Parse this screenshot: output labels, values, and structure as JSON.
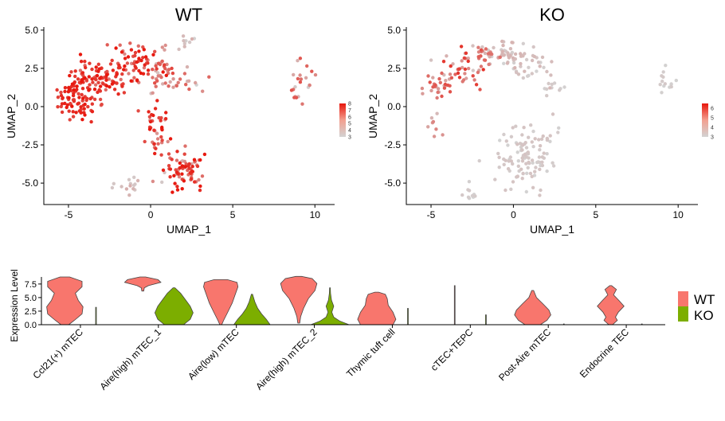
{
  "chart_data": [
    {
      "type": "scatter",
      "panel": "WT",
      "title": "WT",
      "xlabel": "UMAP_1",
      "ylabel": "UMAP_2",
      "xlim": [
        -6.5,
        11.2
      ],
      "ylim": [
        -6.4,
        5.2
      ],
      "xticks": [
        -5,
        0,
        5,
        10
      ],
      "yticks": [
        -5.0,
        -2.5,
        0.0,
        2.5,
        5.0
      ],
      "xtick_labels": [
        "-5",
        "0",
        "5",
        "10"
      ],
      "ytick_labels": [
        "-5.0",
        "-2.5",
        "0.0",
        "2.5",
        "5.0"
      ],
      "color_scale": {
        "min": 3,
        "max": 8,
        "low_color": "#d3d3d3",
        "high_color": "#e8160c",
        "tick_values": [
          3,
          4,
          5,
          6,
          7,
          8
        ],
        "tick_labels": [
          "3",
          "4",
          "5",
          "6",
          "7",
          "8"
        ]
      },
      "clusters": [
        {
          "cx": -4.5,
          "cy": 0.8,
          "sx": 0.55,
          "sy": 0.9,
          "n": 95,
          "expr": [
            6.5,
            8
          ]
        },
        {
          "cx": -2.8,
          "cy": 1.9,
          "sx": 0.85,
          "sy": 0.7,
          "n": 75,
          "expr": [
            5.5,
            8
          ]
        },
        {
          "cx": -1.0,
          "cy": 3.0,
          "sx": 0.8,
          "sy": 0.6,
          "n": 55,
          "expr": [
            5,
            8
          ]
        },
        {
          "cx": 0.7,
          "cy": 2.7,
          "sx": 0.6,
          "sy": 0.5,
          "n": 30,
          "expr": [
            3.5,
            7
          ]
        },
        {
          "cx": 1.8,
          "cy": 1.6,
          "sx": 0.9,
          "sy": 0.35,
          "n": 26,
          "expr": [
            3,
            6
          ]
        },
        {
          "cx": 2.3,
          "cy": 4.3,
          "sx": 0.25,
          "sy": 0.18,
          "n": 8,
          "expr": [
            3,
            4
          ]
        },
        {
          "cx": 0.4,
          "cy": -1.6,
          "sx": 0.4,
          "sy": 0.9,
          "n": 40,
          "expr": [
            4.5,
            8
          ]
        },
        {
          "cx": 1.9,
          "cy": -4.2,
          "sx": 0.7,
          "sy": 0.6,
          "n": 75,
          "expr": [
            3,
            8
          ]
        },
        {
          "cx": -1.3,
          "cy": -5.1,
          "sx": 0.6,
          "sy": 0.25,
          "n": 14,
          "expr": [
            3,
            4
          ]
        },
        {
          "cx": 9.3,
          "cy": 1.5,
          "sx": 0.45,
          "sy": 0.55,
          "n": 22,
          "expr": [
            3,
            6.5
          ]
        }
      ]
    },
    {
      "type": "scatter",
      "panel": "KO",
      "title": "KO",
      "xlabel": "UMAP_1",
      "ylabel": "UMAP_2",
      "xlim": [
        -6.5,
        11.2
      ],
      "ylim": [
        -6.4,
        5.2
      ],
      "xticks": [
        -5,
        0,
        5,
        10
      ],
      "yticks": [
        -5.0,
        -2.5,
        0.0,
        2.5,
        5.0
      ],
      "xtick_labels": [
        "-5",
        "0",
        "5",
        "10"
      ],
      "ytick_labels": [
        "-5.0",
        "-2.5",
        "0.0",
        "2.5",
        "5.0"
      ],
      "color_scale": {
        "min": 3,
        "max": 6.5,
        "low_color": "#d3d3d3",
        "high_color": "#e8160c",
        "tick_values": [
          3,
          4,
          5,
          6
        ],
        "tick_labels": [
          "3",
          "4",
          "5",
          "6"
        ]
      },
      "clusters": [
        {
          "cx": -4.5,
          "cy": 1.5,
          "sx": 0.5,
          "sy": 0.55,
          "n": 30,
          "expr": [
            3,
            5.5
          ]
        },
        {
          "cx": -3.0,
          "cy": 2.4,
          "sx": 0.6,
          "sy": 0.5,
          "n": 35,
          "expr": [
            3.5,
            6
          ]
        },
        {
          "cx": -1.8,
          "cy": 3.3,
          "sx": 0.5,
          "sy": 0.4,
          "n": 25,
          "expr": [
            3,
            5.5
          ]
        },
        {
          "cx": -0.3,
          "cy": 3.4,
          "sx": 0.6,
          "sy": 0.5,
          "n": 40,
          "expr": [
            3,
            3.6
          ]
        },
        {
          "cx": 1.0,
          "cy": 2.5,
          "sx": 0.7,
          "sy": 0.6,
          "n": 30,
          "expr": [
            3,
            3.5
          ]
        },
        {
          "cx": 2.4,
          "cy": 1.2,
          "sx": 0.5,
          "sy": 0.35,
          "n": 10,
          "expr": [
            3,
            3.2
          ]
        },
        {
          "cx": -4.8,
          "cy": -0.7,
          "sx": 0.3,
          "sy": 0.5,
          "n": 8,
          "expr": [
            3,
            4.5
          ]
        },
        {
          "cx": 0.8,
          "cy": -3.2,
          "sx": 1.0,
          "sy": 1.0,
          "n": 110,
          "expr": [
            3,
            3.3
          ]
        },
        {
          "cx": -2.7,
          "cy": -5.8,
          "sx": 0.18,
          "sy": 0.35,
          "n": 10,
          "expr": [
            3,
            3.2
          ]
        },
        {
          "cx": 9.4,
          "cy": 1.8,
          "sx": 0.35,
          "sy": 0.5,
          "n": 14,
          "expr": [
            3,
            3.2
          ]
        }
      ]
    },
    {
      "type": "violin",
      "panel": "expression-by-cluster",
      "ylabel": "Expression Level",
      "ylim": [
        0,
        8.8
      ],
      "yticks": [
        0.0,
        2.5,
        5.0,
        7.5
      ],
      "ytick_labels": [
        "0.0",
        "2.5",
        "5.0",
        "7.5"
      ],
      "categories": [
        "Ccl21(+) mTEC",
        "Aire(high) mTEC_1",
        "Aire(low) mTEC",
        "Aire(high) mTEC_2",
        "Thymic tuft cell",
        "cTEC+TEPC",
        "Post-Aire mTEC",
        "Endocrine TEC"
      ],
      "legend": [
        {
          "name": "WT",
          "color": "#f8766d"
        },
        {
          "name": "KO",
          "color": "#7cae00"
        }
      ],
      "series": [
        {
          "name": "WT",
          "color": "#f8766d",
          "shapes": [
            {
              "min": 0,
              "max": 8.8,
              "w": [
                [
                  0,
                  0.2
                ],
                [
                  0.8,
                  0.5
                ],
                [
                  2.0,
                  0.9
                ],
                [
                  3.3,
                  0.95
                ],
                [
                  4.5,
                  0.7
                ],
                [
                  5.8,
                  0.55
                ],
                [
                  7.0,
                  0.9
                ],
                [
                  8.0,
                  0.9
                ],
                [
                  8.8,
                  0.25
                ]
              ]
            },
            {
              "min": 6.2,
              "max": 8.8,
              "w": [
                [
                  6.2,
                  0.05
                ],
                [
                  6.8,
                  0.08
                ],
                [
                  7.2,
                  0.3
                ],
                [
                  7.8,
                  0.95
                ],
                [
                  8.3,
                  0.8
                ],
                [
                  8.8,
                  0.15
                ]
              ]
            },
            {
              "min": 0,
              "max": 8.3,
              "w": [
                [
                  0,
                  0.05
                ],
                [
                  0.8,
                  0.15
                ],
                [
                  2.2,
                  0.35
                ],
                [
                  4.0,
                  0.6
                ],
                [
                  5.5,
                  0.75
                ],
                [
                  7.0,
                  0.9
                ],
                [
                  7.8,
                  0.85
                ],
                [
                  8.3,
                  0.35
                ]
              ]
            },
            {
              "min": 0.3,
              "max": 8.9,
              "w": [
                [
                  0.3,
                  0.05
                ],
                [
                  1.5,
                  0.1
                ],
                [
                  3.0,
                  0.25
                ],
                [
                  4.8,
                  0.5
                ],
                [
                  6.3,
                  0.85
                ],
                [
                  7.6,
                  0.95
                ],
                [
                  8.5,
                  0.7
                ],
                [
                  8.9,
                  0.15
                ]
              ]
            },
            {
              "min": 0,
              "max": 6.0,
              "w": [
                [
                  0,
                  0.85
                ],
                [
                  1.0,
                  1.0
                ],
                [
                  2.3,
                  0.85
                ],
                [
                  3.6,
                  0.6
                ],
                [
                  4.8,
                  0.55
                ],
                [
                  5.6,
                  0.45
                ],
                [
                  6.0,
                  0.1
                ]
              ]
            },
            {
              "min": 0,
              "max": 7.2,
              "w": [
                [
                  0,
                  0.02
                ],
                [
                  7.2,
                  0.02
                ]
              ]
            },
            {
              "min": 0,
              "max": 6.3,
              "w": [
                [
                  0,
                  0.4
                ],
                [
                  0.8,
                  0.75
                ],
                [
                  1.8,
                  0.95
                ],
                [
                  2.7,
                  0.85
                ],
                [
                  3.8,
                  0.55
                ],
                [
                  5.0,
                  0.2
                ],
                [
                  6.3,
                  0.05
                ]
              ]
            },
            {
              "min": 0,
              "max": 7.2,
              "w": [
                [
                  0,
                  0.1
                ],
                [
                  0.8,
                  0.35
                ],
                [
                  1.4,
                  0.25
                ],
                [
                  2.3,
                  0.4
                ],
                [
                  3.4,
                  0.7
                ],
                [
                  4.4,
                  0.45
                ],
                [
                  5.5,
                  0.15
                ],
                [
                  6.5,
                  0.3
                ],
                [
                  7.2,
                  0.05
                ]
              ]
            }
          ]
        },
        {
          "name": "KO",
          "color": "#7cae00",
          "shapes": [
            {
              "min": 0,
              "max": 3.2,
              "w": [
                [
                  0,
                  0.02
                ],
                [
                  3.2,
                  0.02
                ]
              ]
            },
            {
              "min": 0,
              "max": 6.8,
              "w": [
                [
                  0,
                  0.5
                ],
                [
                  1.0,
                  0.85
                ],
                [
                  2.2,
                  1.0
                ],
                [
                  3.4,
                  0.85
                ],
                [
                  4.6,
                  0.6
                ],
                [
                  5.8,
                  0.35
                ],
                [
                  6.8,
                  0.05
                ]
              ]
            },
            {
              "min": 0,
              "max": 5.6,
              "w": [
                [
                  0,
                  0.95
                ],
                [
                  1.0,
                  0.75
                ],
                [
                  2.0,
                  0.5
                ],
                [
                  3.0,
                  0.3
                ],
                [
                  4.2,
                  0.15
                ],
                [
                  5.6,
                  0.03
                ]
              ]
            },
            {
              "min": 0,
              "max": 6.8,
              "w": [
                [
                  0,
                  1.0
                ],
                [
                  0.7,
                  0.5
                ],
                [
                  1.4,
                  0.2
                ],
                [
                  2.3,
                  0.1
                ],
                [
                  3.4,
                  0.2
                ],
                [
                  4.5,
                  0.08
                ],
                [
                  5.8,
                  0.03
                ],
                [
                  6.8,
                  0.02
                ]
              ]
            },
            {
              "min": 0,
              "max": 3.0,
              "w": [
                [
                  0,
                  0.02
                ],
                [
                  3.0,
                  0.02
                ]
              ]
            },
            {
              "min": 0,
              "max": 1.8,
              "w": [
                [
                  0,
                  0.02
                ],
                [
                  1.8,
                  0.02
                ]
              ]
            },
            {
              "min": 0,
              "max": 0.15,
              "w": [
                [
                  0,
                  0.02
                ],
                [
                  0.15,
                  0.02
                ]
              ]
            },
            {
              "min": 0,
              "max": 0.15,
              "w": [
                [
                  0,
                  0.02
                ],
                [
                  0.15,
                  0.02
                ]
              ]
            }
          ]
        }
      ]
    }
  ]
}
